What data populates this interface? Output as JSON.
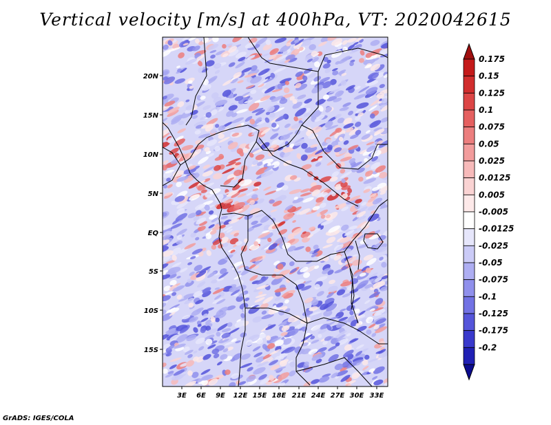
{
  "title": "Vertical velocity [m/s] at 400hPa, VT: 2020042615",
  "footer": "GrADS: IGES/COLA",
  "map": {
    "lat_labels": [
      "20N",
      "15N",
      "10N",
      "5N",
      "EQ",
      "5S",
      "10S",
      "15S"
    ],
    "lon_labels": [
      "3E",
      "6E",
      "9E",
      "12E",
      "15E",
      "18E",
      "21E",
      "24E",
      "27E",
      "30E",
      "33E"
    ]
  },
  "colorbar": {
    "levels": [
      {
        "label": "0.175",
        "color": "#c41a1a"
      },
      {
        "label": "0.15",
        "color": "#d12d2d"
      },
      {
        "label": "0.125",
        "color": "#dc4545"
      },
      {
        "label": "0.1",
        "color": "#e56060"
      },
      {
        "label": "0.075",
        "color": "#ec7e7e"
      },
      {
        "label": "0.05",
        "color": "#f29c9c"
      },
      {
        "label": "0.025",
        "color": "#f7baba"
      },
      {
        "label": "0.0125",
        "color": "#fad3d3"
      },
      {
        "label": "0.005",
        "color": "#fde9e9"
      },
      {
        "label": "-0.005",
        "color": "#ffffff"
      },
      {
        "label": "-0.0125",
        "color": "#e6e6fb"
      },
      {
        "label": "-0.025",
        "color": "#cbcbf7"
      },
      {
        "label": "-0.05",
        "color": "#aeaef2"
      },
      {
        "label": "-0.075",
        "color": "#9090ec"
      },
      {
        "label": "-0.1",
        "color": "#7272e4"
      },
      {
        "label": "-0.125",
        "color": "#5555da"
      },
      {
        "label": "-0.175",
        "color": "#3939cc"
      },
      {
        "label": "-0.2",
        "color": "#2020b4"
      }
    ],
    "top_color": "#a00f0f",
    "bottom_color": "#0b0b8e"
  }
}
